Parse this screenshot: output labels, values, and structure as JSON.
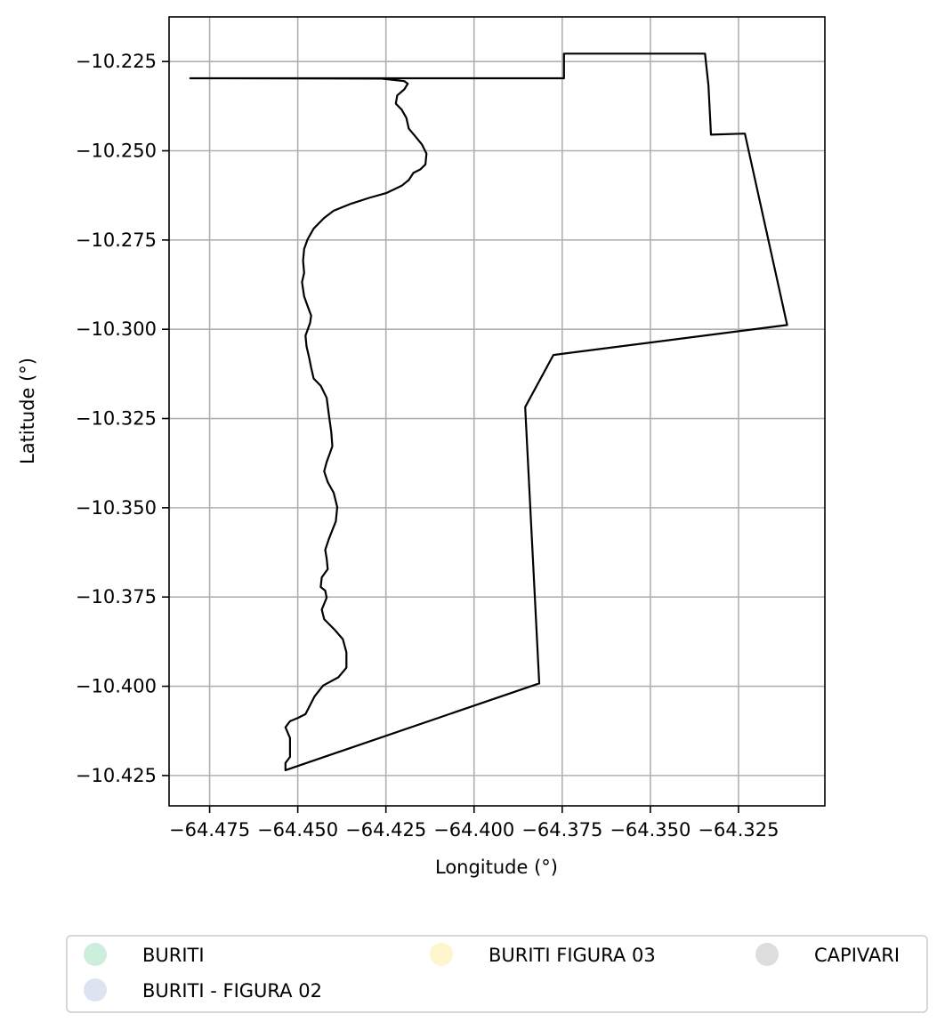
{
  "chart_data": {
    "type": "map",
    "xlabel": "Longitude (°)",
    "ylabel": "Latitude (°)",
    "xlim": [
      -64.4865,
      -64.3005
    ],
    "ylim": [
      -10.4335,
      -10.2125
    ],
    "grid": true,
    "x_ticks": [
      -64.475,
      -64.45,
      -64.425,
      -64.4,
      -64.375,
      -64.35,
      -64.325
    ],
    "x_tick_labels": [
      "−64.475",
      "−64.450",
      "−64.425",
      "−64.400",
      "−64.375",
      "−64.350",
      "−64.325"
    ],
    "y_ticks": [
      -10.225,
      -10.25,
      -10.275,
      -10.3,
      -10.325,
      -10.35,
      -10.375,
      -10.4,
      -10.425
    ],
    "y_tick_labels": [
      "−10.225",
      "−10.250",
      "−10.275",
      "−10.300",
      "−10.325",
      "−10.350",
      "−10.375",
      "−10.400",
      "−10.425"
    ],
    "boundary": {
      "stroke": "#000000",
      "points": [
        [
          -64.4805,
          -10.2297
        ],
        [
          -64.3745,
          -10.2297
        ],
        [
          -64.3745,
          -10.2228
        ],
        [
          -64.3345,
          -10.2228
        ],
        [
          -64.3335,
          -10.2318
        ],
        [
          -64.3328,
          -10.2455
        ],
        [
          -64.3232,
          -10.2452
        ],
        [
          -64.3112,
          -10.2988
        ],
        [
          -64.3775,
          -10.3072
        ],
        [
          -64.3855,
          -10.3218
        ],
        [
          -64.3815,
          -10.3992
        ],
        [
          -64.4535,
          -10.4235
        ],
        [
          -64.4535,
          -10.4215
        ],
        [
          -64.4522,
          -10.4198
        ],
        [
          -64.4522,
          -10.4145
        ],
        [
          -64.4535,
          -10.4115
        ],
        [
          -64.4522,
          -10.4098
        ],
        [
          -64.4498,
          -10.4088
        ],
        [
          -64.4478,
          -10.4078
        ],
        [
          -64.4452,
          -10.4028
        ],
        [
          -64.4428,
          -10.3998
        ],
        [
          -64.4385,
          -10.3975
        ],
        [
          -64.4362,
          -10.3948
        ],
        [
          -64.4362,
          -10.3905
        ],
        [
          -64.4372,
          -10.3868
        ],
        [
          -64.4395,
          -10.3842
        ],
        [
          -64.4425,
          -10.3812
        ],
        [
          -64.4432,
          -10.3785
        ],
        [
          -64.4418,
          -10.3752
        ],
        [
          -64.4422,
          -10.3732
        ],
        [
          -64.4435,
          -10.3722
        ],
        [
          -64.4432,
          -10.3695
        ],
        [
          -64.4415,
          -10.3672
        ],
        [
          -64.4418,
          -10.3642
        ],
        [
          -64.4422,
          -10.3618
        ],
        [
          -64.4412,
          -10.3588
        ],
        [
          -64.4392,
          -10.3538
        ],
        [
          -64.4388,
          -10.3498
        ],
        [
          -64.4398,
          -10.3458
        ],
        [
          -64.4415,
          -10.3428
        ],
        [
          -64.4425,
          -10.3398
        ],
        [
          -64.4418,
          -10.3372
        ],
        [
          -64.4402,
          -10.3328
        ],
        [
          -64.4405,
          -10.3288
        ],
        [
          -64.4412,
          -10.3238
        ],
        [
          -64.4418,
          -10.3192
        ],
        [
          -64.4435,
          -10.3158
        ],
        [
          -64.4455,
          -10.3138
        ],
        [
          -64.4462,
          -10.3108
        ],
        [
          -64.4468,
          -10.3078
        ],
        [
          -64.4475,
          -10.3048
        ],
        [
          -64.4478,
          -10.3018
        ],
        [
          -64.4465,
          -10.2982
        ],
        [
          -64.4462,
          -10.2962
        ],
        [
          -64.4472,
          -10.2935
        ],
        [
          -64.4482,
          -10.2908
        ],
        [
          -64.4488,
          -10.2868
        ],
        [
          -64.4482,
          -10.2842
        ],
        [
          -64.4485,
          -10.2808
        ],
        [
          -64.4482,
          -10.2775
        ],
        [
          -64.4472,
          -10.2748
        ],
        [
          -64.4455,
          -10.2718
        ],
        [
          -64.4425,
          -10.2688
        ],
        [
          -64.4398,
          -10.2668
        ],
        [
          -64.4348,
          -10.2648
        ],
        [
          -64.4298,
          -10.2632
        ],
        [
          -64.4248,
          -10.2618
        ],
        [
          -64.4205,
          -10.2598
        ],
        [
          -64.4185,
          -10.2582
        ],
        [
          -64.4172,
          -10.2562
        ],
        [
          -64.4152,
          -10.2552
        ],
        [
          -64.4138,
          -10.2538
        ],
        [
          -64.4135,
          -10.2508
        ],
        [
          -64.4148,
          -10.2482
        ],
        [
          -64.4168,
          -10.2458
        ],
        [
          -64.4185,
          -10.2438
        ],
        [
          -64.4192,
          -10.2408
        ],
        [
          -64.4205,
          -10.2385
        ],
        [
          -64.4222,
          -10.2368
        ],
        [
          -64.4218,
          -10.2345
        ],
        [
          -64.4198,
          -10.2328
        ],
        [
          -64.4188,
          -10.2312
        ],
        [
          -64.4198,
          -10.2305
        ],
        [
          -64.4262,
          -10.2298
        ],
        [
          -64.4805,
          -10.2297
        ]
      ]
    },
    "legend": {
      "placement": "below",
      "entries": [
        {
          "label": "BURITI",
          "color": "#cdeedd"
        },
        {
          "label": "BURITI - FIGURA 02",
          "color": "#dce4f2"
        },
        {
          "label": "BURITI FIGURA 03",
          "color": "#fff5cc"
        },
        {
          "label": "CAPIVARI",
          "color": "#dddddd"
        }
      ]
    }
  }
}
